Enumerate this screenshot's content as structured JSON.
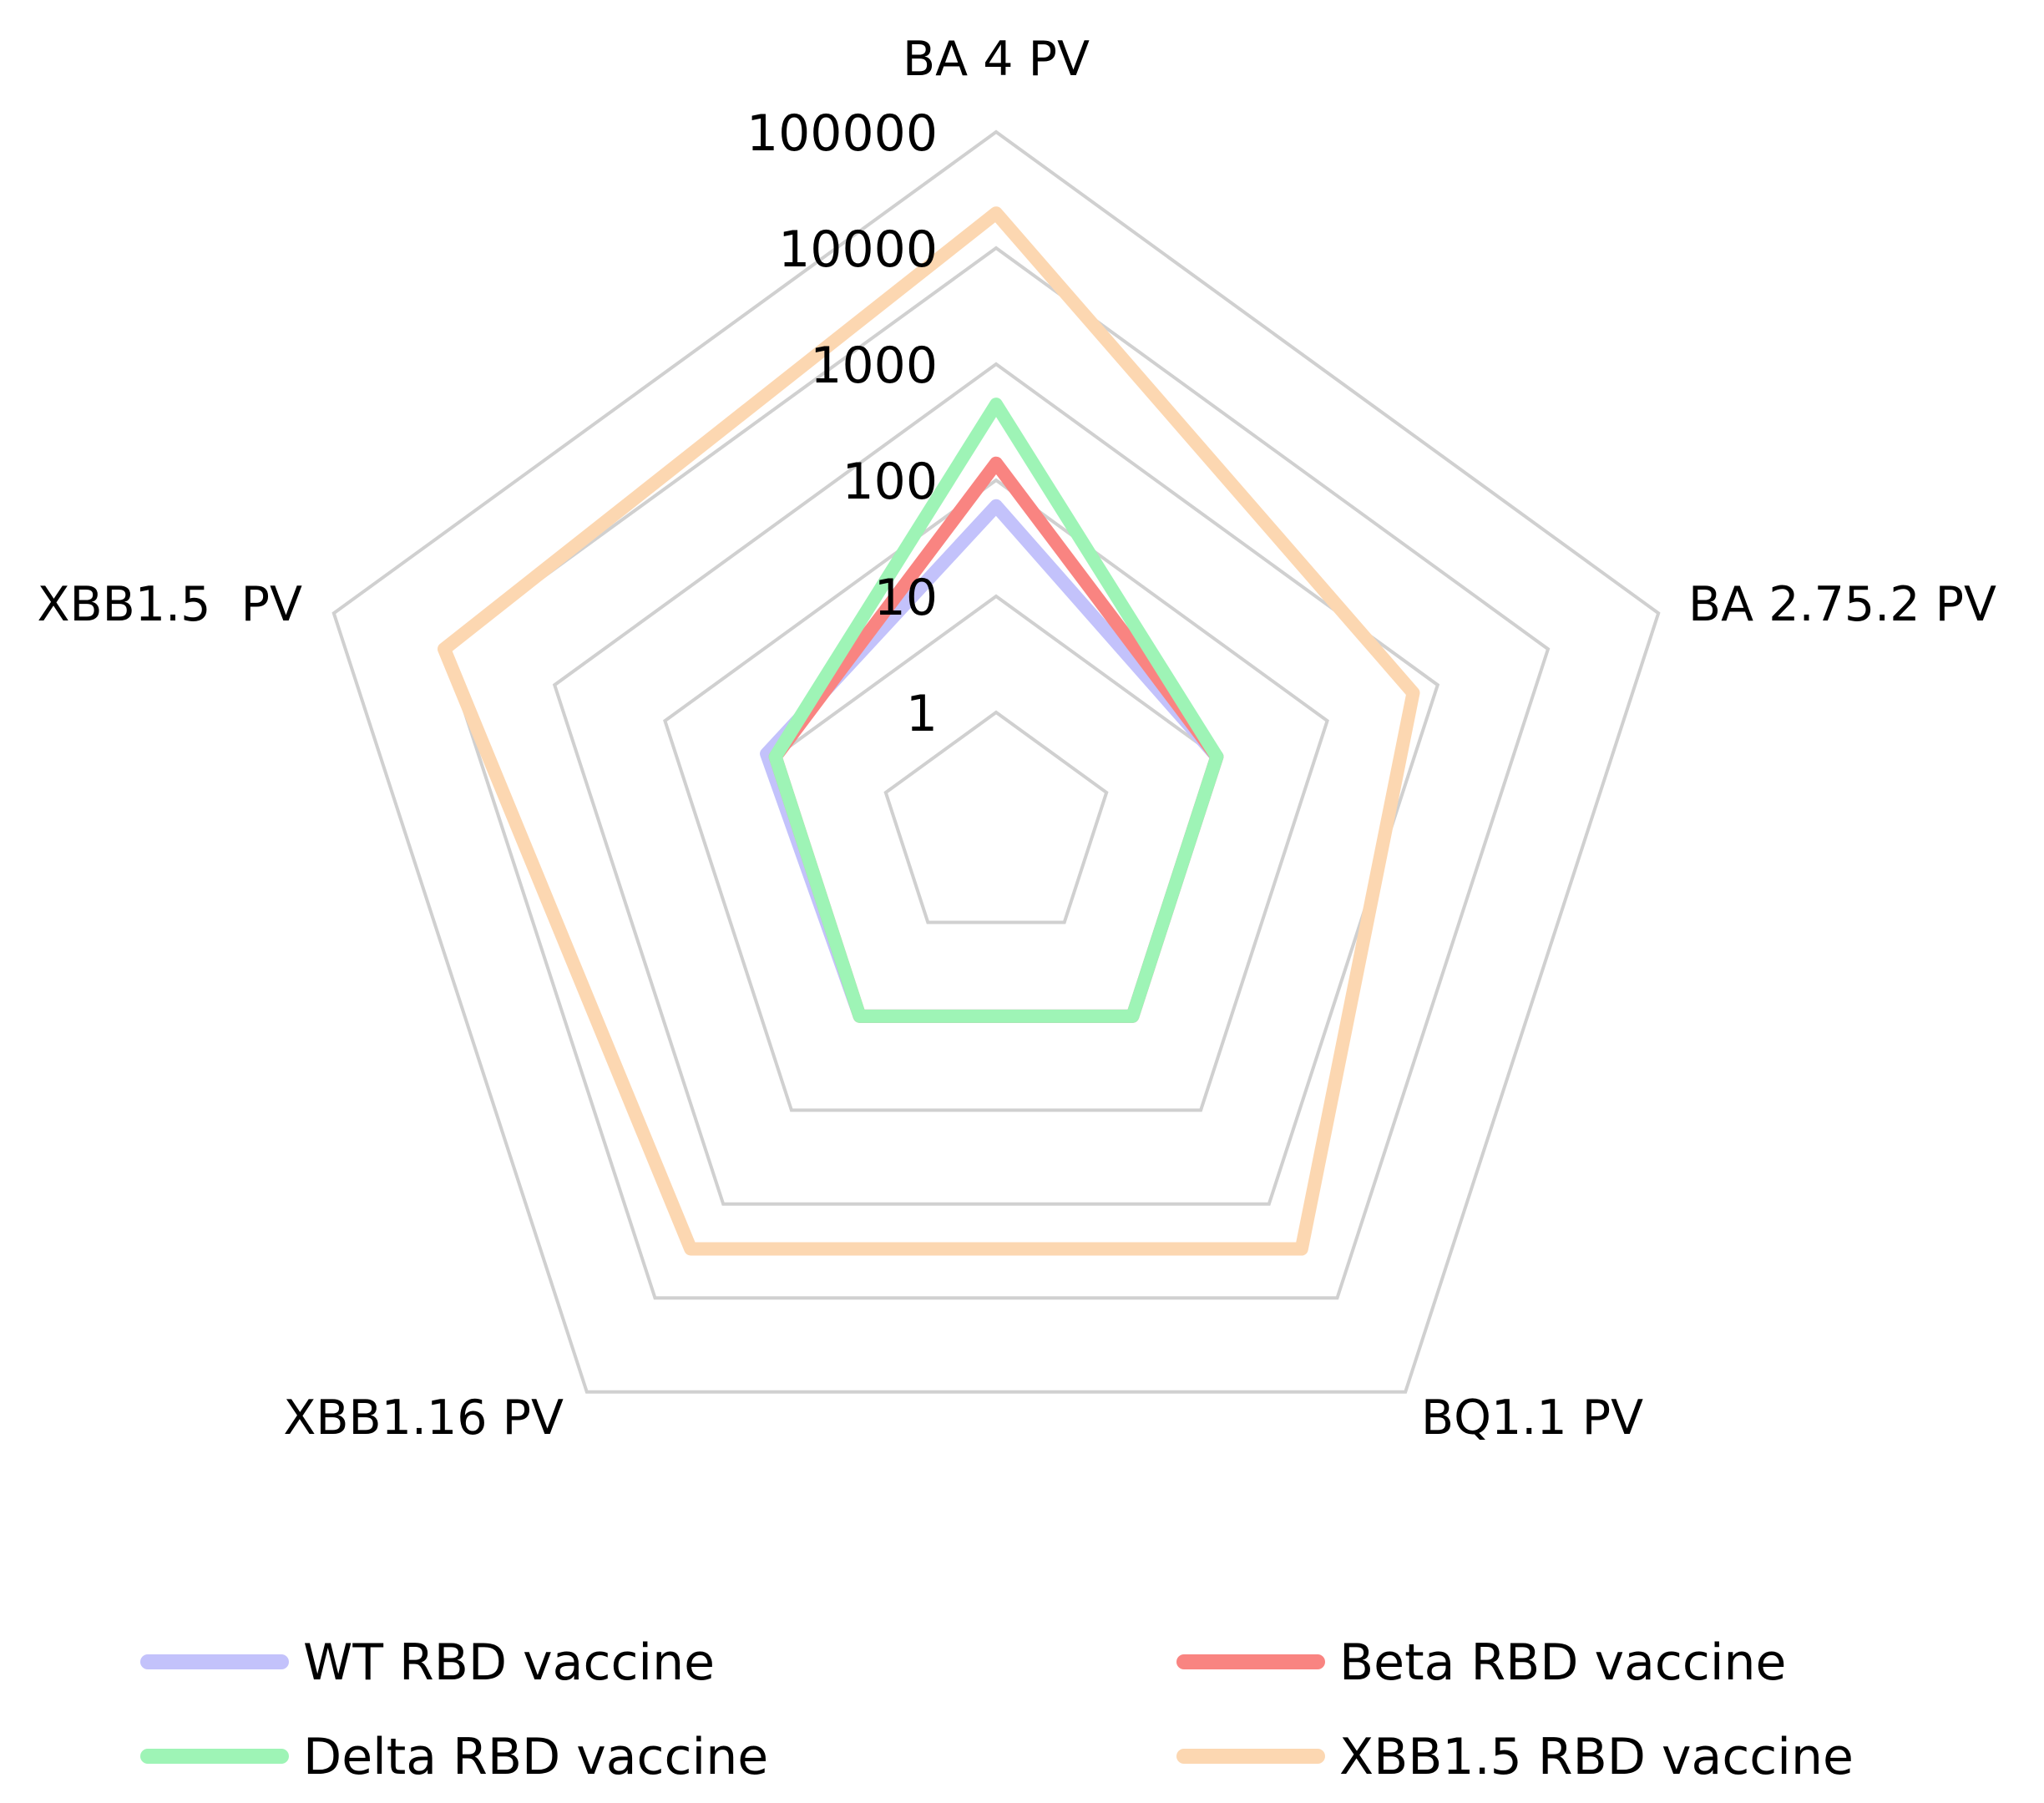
{
  "chart_data": {
    "type": "radar",
    "scale": "log10",
    "axes": [
      "BA 4 PV",
      "BA 2.75.2 PV",
      "BQ1.1 PV",
      "XBB1.16 PV",
      "XBB1.5  PV"
    ],
    "ticks": [
      "1",
      "10",
      "100",
      "1000",
      "10000",
      "100000"
    ],
    "range": [
      1,
      100000
    ],
    "grid": true,
    "legend_position": "bottom",
    "series": [
      {
        "name": "WT RBD vaccine",
        "color": "#c3c2fb",
        "values": [
          60,
          10,
          10,
          10,
          12
        ]
      },
      {
        "name": "Beta RBD vaccine",
        "color": "#f98481",
        "values": [
          140,
          10,
          10,
          10,
          10
        ]
      },
      {
        "name": "Delta RBD vaccine",
        "color": "#9ef4b6",
        "values": [
          450,
          10,
          10,
          10,
          10
        ]
      },
      {
        "name": "XBB1.5 RBD vaccine",
        "color": "#fcd7b1",
        "values": [
          20000,
          600,
          3000,
          3000,
          10000
        ]
      }
    ]
  }
}
